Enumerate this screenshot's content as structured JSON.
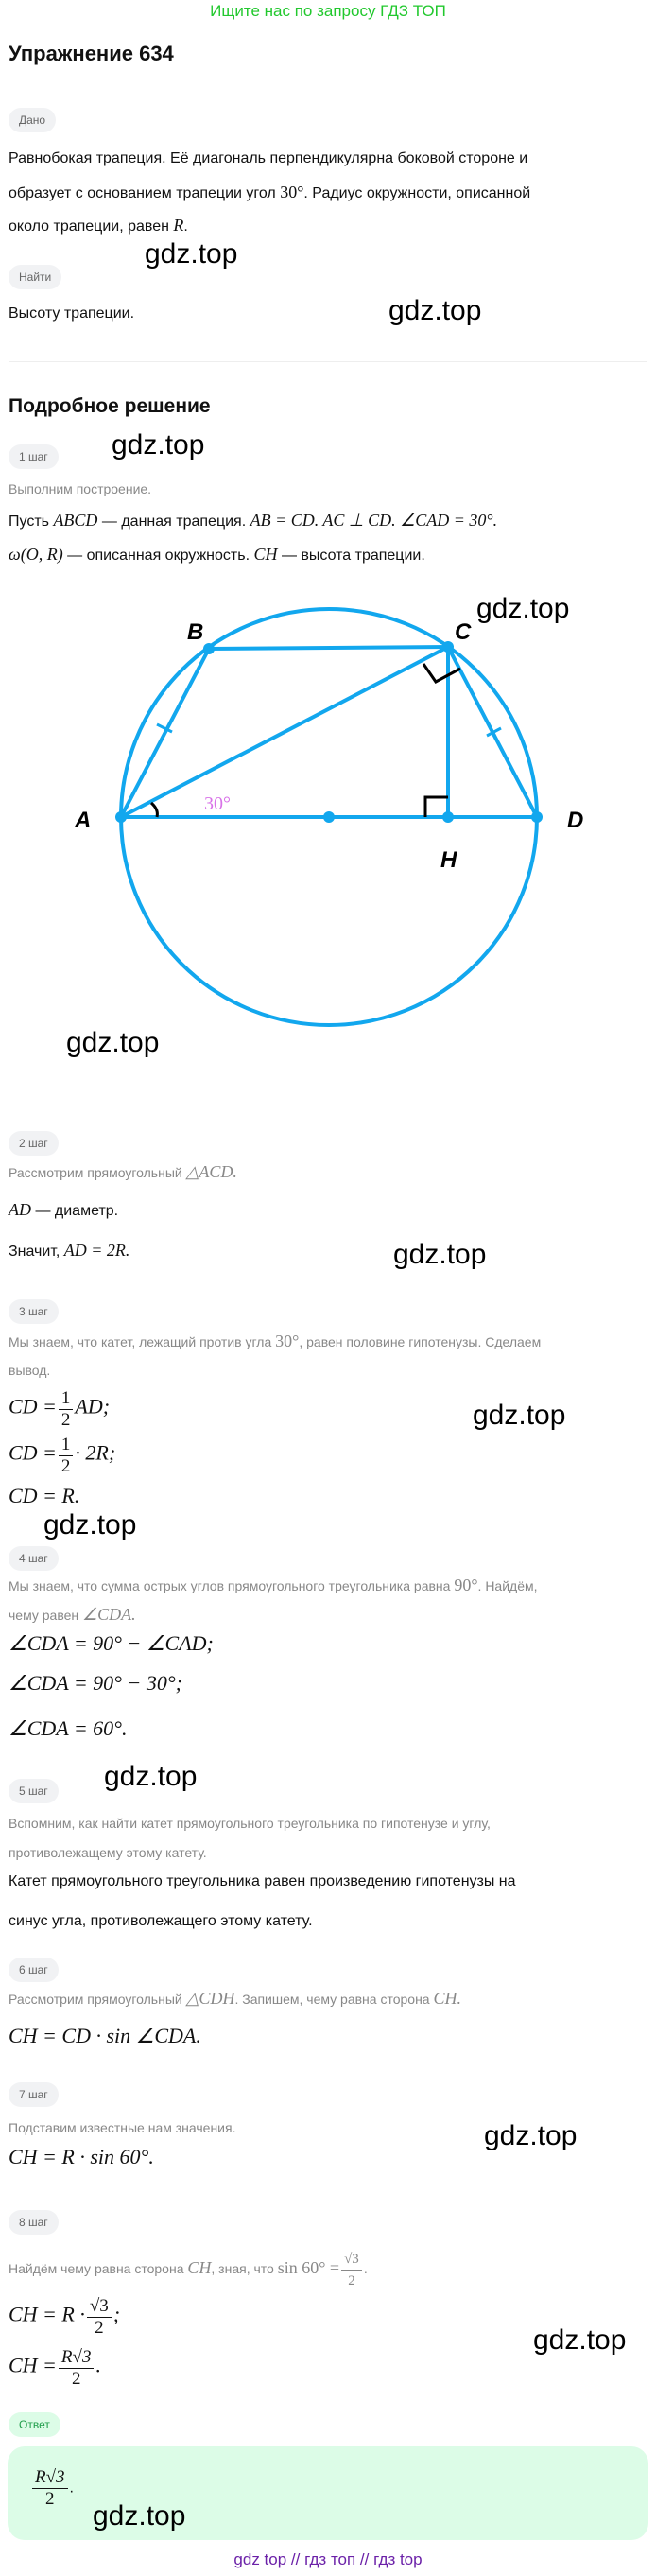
{
  "banner": "Ищите нас по запросу ГДЗ ТОП",
  "title": "Упражнение 634",
  "given": {
    "badge": "Дано",
    "line1": "Равнобокая трапеция. Её диагональ перпендикулярна боковой стороне и",
    "line2a": "образует с основанием трапеции угол",
    "line2m": "30°",
    "line2b": ". Радиус окружности, описанной",
    "line3a": "около трапеции, равен",
    "line3m": "R",
    "line3b": "."
  },
  "find": {
    "badge": "Найти",
    "text": "Высоту трапеции."
  },
  "solution_title": "Подробное решение",
  "steps": {
    "s1": {
      "badge": "1 шаг",
      "gray": "Выполним построение.",
      "l1a": "Пусть",
      "l1m1": "ABCD",
      "l1b": "— данная трапеция.",
      "l1m2": "AB = CD. AC ⊥ CD. ∠CAD = 30°.",
      "l2m1": "ω(O,  R)",
      "l2b": "— описанная окружность.",
      "l2m2": "CH",
      "l2c": "— высота трапеции."
    },
    "s2": {
      "badge": "2 шаг",
      "gray": "Рассмотрим прямоугольный",
      "graym": "△ACD.",
      "l1m": "AD",
      "l1b": "— диаметр.",
      "l2a": "Значит,",
      "l2m": "AD = 2R."
    },
    "s3": {
      "badge": "3 шаг",
      "gray1a": "Мы знаем, что катет, лежащий против угла",
      "gray1m": "30°",
      "gray1b": ", равен половине гипотенузы. Сделаем",
      "gray2": "вывод.",
      "e1a": "CD =",
      "e1n": "1",
      "e1d": "2",
      "e1b": "AD;",
      "e2a": "CD =",
      "e2n": "1",
      "e2d": "2",
      "e2b": "· 2R;",
      "e3": "CD = R."
    },
    "s4": {
      "badge": "4 шаг",
      "gray1a": "Мы знаем, что сумма острых углов прямоугольного треугольника равна",
      "gray1m": "90°",
      "gray1b": ". Найдём,",
      "gray2a": "чему равен",
      "gray2m": "∠CDA.",
      "e1": "∠CDA = 90° − ∠CAD;",
      "e2": "∠CDA = 90° − 30°;",
      "e3": "∠CDA = 60°."
    },
    "s5": {
      "badge": "5 шаг",
      "gray1": "Вспомним, как найти катет прямоугольного треугольника по гипотенузе и углу,",
      "gray2": "противолежащему этому катету.",
      "l1": "Катет прямоугольного треугольника равен произведению гипотенузы на",
      "l2": "синус угла, противолежащего этому катету."
    },
    "s6": {
      "badge": "6 шаг",
      "gray_a": "Рассмотрим прямоугольный",
      "gray_m1": "△CDH",
      "gray_b": ". Запишем, чему равна сторона",
      "gray_m2": "CH.",
      "e1": "CH = CD · sin ∠CDA."
    },
    "s7": {
      "badge": "7 шаг",
      "gray": "Подставим известные нам значения.",
      "e1": "CH = R · sin 60°."
    },
    "s8": {
      "badge": "8 шаг",
      "gray_a": "Найдём чему равна сторона",
      "gray_m": "CH",
      "gray_b": ", зная, что",
      "gray_m2": "sin 60° =",
      "gray_n": "√3",
      "gray_d": "2",
      "e1a": "CH = R ·",
      "e1n": "√3",
      "e1d": "2",
      "e1b": ";",
      "e2a": "CH =",
      "e2n": "R√3",
      "e2d": "2",
      "e2b": "."
    }
  },
  "figure": {
    "labels": {
      "A": "A",
      "B": "B",
      "C": "C",
      "D": "D",
      "H": "H"
    },
    "angle_label": "30°",
    "line_color": "#12a7ee",
    "angle_color": "#d873e8"
  },
  "answer": {
    "badge": "Ответ",
    "num": "R√3",
    "den": "2",
    "tail": "."
  },
  "watermark": "gdz.top",
  "footer": "gdz top  //  гдз топ  //  гдз top"
}
